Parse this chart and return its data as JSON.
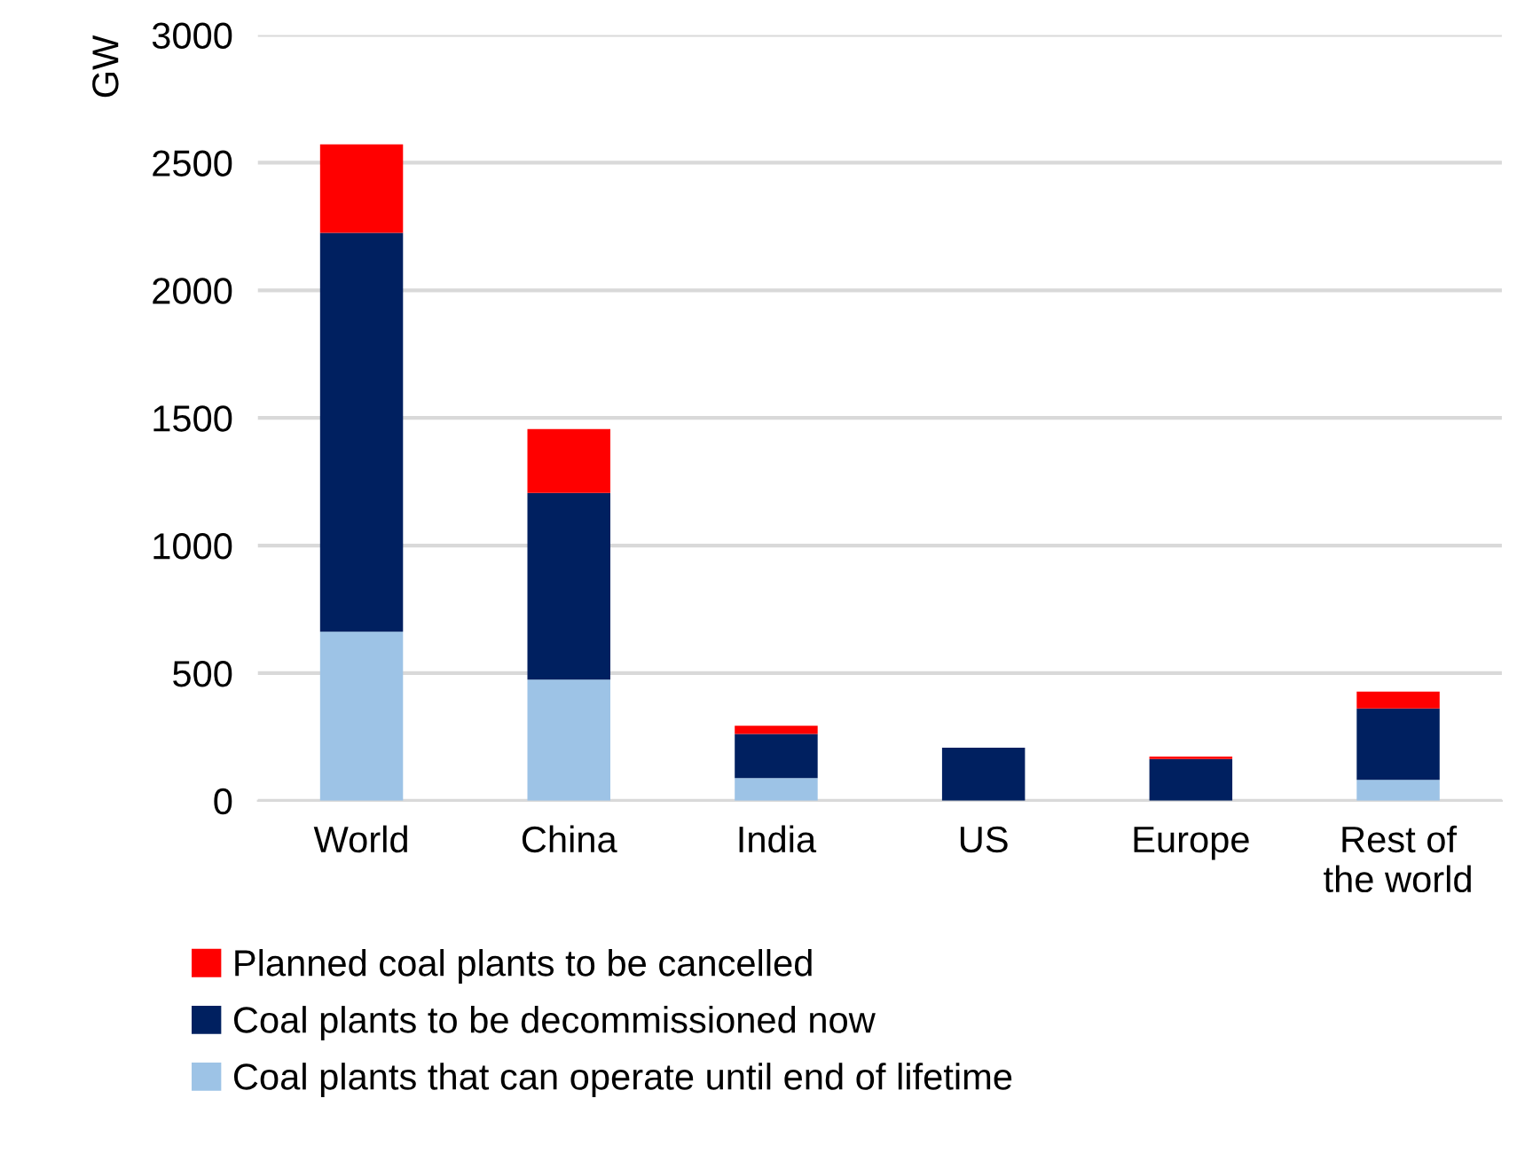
{
  "chart_data": {
    "type": "bar",
    "stacked": true,
    "ylabel": "GW",
    "categories": [
      "World",
      "China",
      "India",
      "US",
      "Europe",
      "Rest of\nthe world"
    ],
    "series": [
      {
        "name": "Coal plants that can operate until end of lifetime",
        "color": "#9dc3e6",
        "values": [
          662,
          475,
          89,
          0,
          0,
          82
        ]
      },
      {
        "name": "Coal plants to be decommissioned now",
        "color": "#002060",
        "values": [
          1563,
          731,
          173,
          208,
          164,
          280
        ]
      },
      {
        "name": "Planned coal plants to be cancelled",
        "color": "#ff0000",
        "values": [
          347,
          250,
          32,
          0,
          9,
          66
        ]
      }
    ],
    "ylim": [
      0,
      3000
    ],
    "yticks": [
      0,
      500,
      1000,
      1500,
      2000,
      2500,
      3000
    ],
    "grid": "y",
    "legend": "bottom"
  }
}
